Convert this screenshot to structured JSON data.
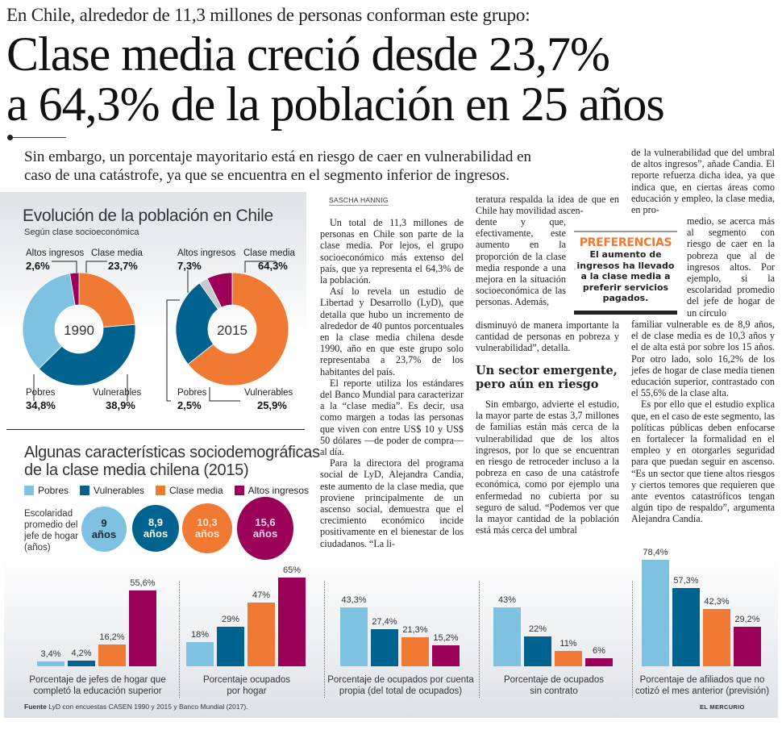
{
  "kicker": "En Chile, alrededor de 11,3 millones de personas conforman este grupo:",
  "headline": [
    "Clase media creció desde 23,7%",
    "a 64,3% de la población en 25 años"
  ],
  "deck": [
    "Sin embargo, un porcentaje mayoritario está en riesgo de caer en vulnerabilidad en",
    "caso de una catástrofe, ya que se encuentra en el segmento inferior de ingresos."
  ],
  "colors": {
    "pobres": "#7fc1e0",
    "vulnerables": "#00628e",
    "clase_media": "#f07a33",
    "altos_ingresos": "#9a0058",
    "pobres_2015": "#c8cacc"
  },
  "donut_section": {
    "title": "Evolución de la población en Chile",
    "subtitle": "Según clase socioeconómica"
  },
  "chart_data": [
    {
      "type": "pie",
      "title": "1990",
      "center_label": "1990",
      "categories": [
        "Clase media",
        "Vulnerables",
        "Pobres",
        "Altos ingresos"
      ],
      "values": [
        23.7,
        38.9,
        34.8,
        2.6
      ],
      "value_labels": [
        "23,7%",
        "38,9%",
        "34,8%",
        "2,6%"
      ]
    },
    {
      "type": "pie",
      "title": "2015",
      "center_label": "2015",
      "categories": [
        "Clase media",
        "Vulnerables",
        "Pobres",
        "Altos ingresos"
      ],
      "values": [
        64.3,
        25.9,
        2.5,
        7.3
      ],
      "value_labels": [
        "64,3%",
        "25,9%",
        "2,5%",
        "7,3%"
      ]
    },
    {
      "type": "bar",
      "title": "Porcentaje de jefes de hogar que completó la educación superior",
      "caption": [
        "Porcentaje de jefes de hogar que",
        "completó la educación superior"
      ],
      "categories": [
        "Pobres",
        "Vulnerables",
        "Clase media",
        "Altos ingresos"
      ],
      "values": [
        3.4,
        4.2,
        16.2,
        55.6
      ],
      "value_labels": [
        "3,4%",
        "4,2%",
        "16,2%",
        "55,6%"
      ],
      "ylim": [
        0,
        80
      ]
    },
    {
      "type": "bar",
      "title": "Porcentaje ocupados por hogar",
      "caption": [
        "Porcentaje ocupados",
        "por hogar"
      ],
      "categories": [
        "Pobres",
        "Vulnerables",
        "Clase media",
        "Altos ingresos"
      ],
      "values": [
        18,
        29,
        47,
        65
      ],
      "value_labels": [
        "18%",
        "29%",
        "47%",
        "65%"
      ],
      "ylim": [
        0,
        80
      ]
    },
    {
      "type": "bar",
      "title": "Porcentaje de ocupados por cuenta propia (del total de ocupados)",
      "caption": [
        "Porcentaje de ocupados por cuenta",
        "propia (del total de ocupados)"
      ],
      "categories": [
        "Pobres",
        "Vulnerables",
        "Clase media",
        "Altos ingresos"
      ],
      "values": [
        43.3,
        27.4,
        21.3,
        15.2
      ],
      "value_labels": [
        "43,3%",
        "27,4%",
        "21,3%",
        "15,2%"
      ],
      "ylim": [
        0,
        80
      ]
    },
    {
      "type": "bar",
      "title": "Porcentaje de ocupados sin contrato",
      "caption": [
        "Porcentaje de ocupados",
        "sin contrato"
      ],
      "categories": [
        "Pobres",
        "Vulnerables",
        "Clase media",
        "Altos ingresos"
      ],
      "values": [
        43,
        22,
        11,
        6
      ],
      "value_labels": [
        "43%",
        "22%",
        "11%",
        "6%"
      ],
      "ylim": [
        0,
        80
      ]
    },
    {
      "type": "bar",
      "title": "Porcentaje de afiliados que no cotizó el mes anterior (previsión)",
      "caption": [
        "Porcentaje de afiliados que no",
        "cotizó el mes anterior (previsión)"
      ],
      "categories": [
        "Pobres",
        "Vulnerables",
        "Clase media",
        "Altos ingresos"
      ],
      "values": [
        78.4,
        57.3,
        42.3,
        29.2
      ],
      "value_labels": [
        "78,4%",
        "57,3%",
        "42,3%",
        "29,2%"
      ],
      "ylim": [
        0,
        80
      ]
    }
  ],
  "characteristics": {
    "title": [
      "Algunas características sociodemográficas",
      "de la clase media chilena (2015)"
    ],
    "legend": [
      "Pobres",
      "Vulnerables",
      "Clase media",
      "Altos ingresos"
    ],
    "schooling_label": [
      "Escolaridad",
      "promedio del",
      "jefe de hogar",
      "(años)"
    ],
    "schooling": [
      {
        "value": "9",
        "unit": "años"
      },
      {
        "value": "8,9",
        "unit": "años"
      },
      {
        "value": "10,3",
        "unit": "años"
      },
      {
        "value": "15,6",
        "unit": "años"
      }
    ]
  },
  "article": {
    "byline": "SASCHA HANNIG",
    "col1": [
      "Un total de 11,3 millones de personas en Chile son parte de la clase media. Por lejos, el grupo socioeconómico más extenso del país, que ya representa el 64,3% de la población.",
      "Así lo revela un estudio de Libertad y Desarrollo (LyD), que detalla que hubo un incremento de alrededor de 40 puntos porcentuales en la clase media chilena desde 1990, año en que este grupo solo representaba a 23,7% de los habitantes del país.",
      "El reporte utiliza los estándares del Banco Mundial para caracterizar a la “clase media”. Es decir, usa como margen a todas las personas que viven con entre US$ 10 y US$ 50 dólares —de poder de compra— al día.",
      "Para la directora del programa social de LyD, Alejandra Candia, este aumento de la clase media, que proviene principalmente de un ascenso social, demuestra que el crecimiento económico incide positivamente en el bienestar de los ciudadanos. “La li-"
    ],
    "col2_top": "teratura respalda la idea de que en Chile hay movilidad ascen-",
    "col2_narrow": "dente y que, efectivamente, este aumento en la proporción de la clase media responde a una mejora en la situación socioeconómica de las personas. Además,",
    "col2_rest": "disminuyó de manera importante la cantidad de personas en pobreza y vulnerabilidad”, detalla.",
    "subhead": [
      "Un sector emergente,",
      "pero aún en riesgo"
    ],
    "col2_after": "Sin embargo, advierte el estudio, la mayor parte de estas 3,7 millones de familias están más cerca de la vulnerabilidad que de los altos ingresos, por lo que se encuentran en riesgo de retroceder incluso a la pobreza en caso de una catástrofe económica, como por ejemplo una enfermedad no cubierta por su seguro de salud. “Podemos ver que la mayor cantidad de la población está más cerca del umbral",
    "col3_top": "de la vulnerabilidad que del umbral de altos ingresos”, añade Candia. El reporte refuerza dicha idea, ya que indica que, en ciertas áreas como educación y empleo, la clase media, en pro-",
    "col3_narrow": "medio, se acerca más al segmento con riesgo de caer en la pobreza que al de ingresos altos. Por ejemplo, si la escolaridad promedio del jefe de hogar de un círculo",
    "col3_rest": "familiar vulnerable es de 8,9 años, el de clase media es de 10,3 años y el de alta está por sobre los 15 años. Por otro lado, solo 16,2% de los jefes de hogar de clase media tienen educación superior, contrastado con el 55,6% de la clase alta.",
    "col3_last": "Es por ello que el estudio explica que, en el caso de este segmento, las políticas públicas deben enfocarse en fortalecer la formalidad en el empleo y en otorgarles seguridad para que puedan seguir en ascenso. “Es un sector que tiene altos riesgos y ciertos temores que requieren que ante eventos catastróficos tengan algún tipo de respaldo”, argumenta Alejandra Candia."
  },
  "pullquote": {
    "title": "PREFERENCIAS",
    "body": "El aumento de ingresos ha llevado a la clase media a preferir servicios pagados."
  },
  "footer": {
    "source_label": "Fuente",
    "source_text": " LyD con encuestas CASEN 1990 y 2015 y Banco Mundial (2017).",
    "brand": "EL MERCURIO"
  }
}
